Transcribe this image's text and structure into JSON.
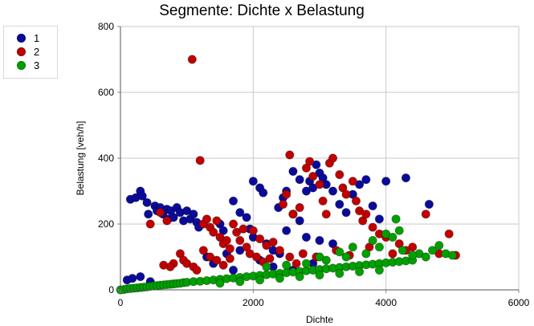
{
  "chart_data": {
    "type": "scatter",
    "title": "Segmente: Dichte x Belastung",
    "xlabel": "Dichte",
    "ylabel": "Belastung [veh/h]",
    "xlim": [
      0,
      6000
    ],
    "ylim": [
      0,
      800
    ],
    "xticks": [
      0,
      2000,
      4000,
      6000
    ],
    "yticks": [
      0,
      200,
      400,
      600,
      800
    ],
    "grid": true,
    "legend_position": "top-left",
    "series": [
      {
        "name": "1",
        "color": "#0a0a9a",
        "points": [
          [
            100,
            30
          ],
          [
            180,
            35
          ],
          [
            300,
            40
          ],
          [
            450,
            25
          ],
          [
            150,
            275
          ],
          [
            230,
            280
          ],
          [
            300,
            300
          ],
          [
            330,
            285
          ],
          [
            400,
            265
          ],
          [
            420,
            230
          ],
          [
            520,
            255
          ],
          [
            550,
            240
          ],
          [
            600,
            250
          ],
          [
            640,
            230
          ],
          [
            700,
            245
          ],
          [
            720,
            215
          ],
          [
            760,
            240
          ],
          [
            800,
            220
          ],
          [
            850,
            250
          ],
          [
            900,
            235
          ],
          [
            950,
            210
          ],
          [
            1000,
            240
          ],
          [
            1050,
            215
          ],
          [
            1100,
            230
          ],
          [
            1150,
            205
          ],
          [
            1180,
            190
          ],
          [
            1500,
            200
          ],
          [
            1550,
            180
          ],
          [
            1700,
            270
          ],
          [
            1800,
            235
          ],
          [
            1900,
            220
          ],
          [
            1950,
            185
          ],
          [
            2000,
            330
          ],
          [
            2100,
            310
          ],
          [
            2150,
            295
          ],
          [
            2000,
            160
          ],
          [
            2200,
            140
          ],
          [
            2300,
            120
          ],
          [
            2400,
            110
          ],
          [
            2380,
            250
          ],
          [
            2450,
            280
          ],
          [
            2500,
            300
          ],
          [
            2600,
            360
          ],
          [
            2700,
            335
          ],
          [
            2800,
            300
          ],
          [
            2850,
            330
          ],
          [
            2900,
            310
          ],
          [
            2950,
            380
          ],
          [
            3000,
            355
          ],
          [
            3050,
            340
          ],
          [
            2600,
            230
          ],
          [
            2700,
            210
          ],
          [
            3100,
            320
          ],
          [
            3200,
            300
          ],
          [
            3300,
            260
          ],
          [
            3400,
            235
          ],
          [
            3500,
            290
          ],
          [
            3600,
            320
          ],
          [
            3700,
            335
          ],
          [
            3800,
            255
          ],
          [
            3900,
            215
          ],
          [
            4000,
            330
          ],
          [
            4300,
            340
          ],
          [
            4650,
            260
          ],
          [
            2500,
            180
          ],
          [
            2800,
            160
          ],
          [
            3000,
            150
          ],
          [
            3200,
            140
          ],
          [
            1300,
            100
          ],
          [
            1400,
            80
          ],
          [
            1600,
            110
          ],
          [
            1700,
            60
          ],
          [
            1800,
            120
          ],
          [
            2100,
            90
          ],
          [
            2300,
            70
          ],
          [
            2600,
            60
          ],
          [
            2900,
            80
          ]
        ]
      },
      {
        "name": "2",
        "color": "#c00000",
        "points": [
          [
            1080,
            700
          ],
          [
            1200,
            393
          ],
          [
            450,
            200
          ],
          [
            600,
            235
          ],
          [
            700,
            210
          ],
          [
            900,
            110
          ],
          [
            950,
            90
          ],
          [
            1000,
            80
          ],
          [
            800,
            80
          ],
          [
            750,
            70
          ],
          [
            650,
            75
          ],
          [
            1100,
            70
          ],
          [
            1150,
            60
          ],
          [
            1250,
            200
          ],
          [
            1300,
            215
          ],
          [
            1350,
            190
          ],
          [
            1400,
            175
          ],
          [
            1450,
            210
          ],
          [
            1500,
            160
          ],
          [
            1550,
            140
          ],
          [
            1600,
            150
          ],
          [
            1650,
            125
          ],
          [
            1700,
            200
          ],
          [
            1750,
            175
          ],
          [
            1800,
            150
          ],
          [
            1850,
            185
          ],
          [
            1900,
            130
          ],
          [
            1950,
            110
          ],
          [
            2000,
            180
          ],
          [
            2100,
            155
          ],
          [
            2200,
            135
          ],
          [
            2300,
            145
          ],
          [
            2400,
            120
          ],
          [
            2450,
            260
          ],
          [
            2500,
            290
          ],
          [
            2550,
            410
          ],
          [
            2600,
            230
          ],
          [
            2700,
            250
          ],
          [
            2800,
            370
          ],
          [
            2850,
            390
          ],
          [
            2900,
            345
          ],
          [
            3000,
            320
          ],
          [
            3050,
            270
          ],
          [
            3100,
            230
          ],
          [
            3150,
            385
          ],
          [
            3200,
            400
          ],
          [
            3300,
            350
          ],
          [
            3350,
            310
          ],
          [
            3400,
            290
          ],
          [
            3500,
            330
          ],
          [
            3550,
            270
          ],
          [
            3600,
            240
          ],
          [
            3650,
            210
          ],
          [
            3700,
            230
          ],
          [
            3800,
            190
          ],
          [
            3900,
            170
          ],
          [
            4000,
            160
          ],
          [
            4200,
            140
          ],
          [
            4400,
            130
          ],
          [
            4600,
            230
          ],
          [
            4800,
            110
          ],
          [
            4950,
            170
          ],
          [
            5050,
            105
          ],
          [
            1250,
            120
          ],
          [
            1350,
            100
          ],
          [
            1450,
            90
          ],
          [
            1550,
            75
          ],
          [
            1650,
            95
          ],
          [
            2050,
            100
          ],
          [
            2150,
            85
          ],
          [
            2250,
            95
          ],
          [
            2550,
            100
          ],
          [
            2650,
            80
          ],
          [
            2750,
            110
          ],
          [
            2950,
            100
          ],
          [
            3250,
            120
          ],
          [
            3450,
            105
          ],
          [
            3750,
            130
          ],
          [
            4100,
            110
          ],
          [
            4300,
            120
          ]
        ]
      },
      {
        "name": "3",
        "color": "#00a000",
        "points": [
          [
            0,
            0
          ],
          [
            50,
            1
          ],
          [
            100,
            3
          ],
          [
            150,
            4
          ],
          [
            200,
            5
          ],
          [
            250,
            6
          ],
          [
            300,
            7
          ],
          [
            350,
            8
          ],
          [
            400,
            9
          ],
          [
            450,
            11
          ],
          [
            500,
            12
          ],
          [
            550,
            13
          ],
          [
            600,
            14
          ],
          [
            650,
            15
          ],
          [
            700,
            16
          ],
          [
            750,
            17
          ],
          [
            800,
            18
          ],
          [
            850,
            19
          ],
          [
            900,
            20
          ],
          [
            950,
            22
          ],
          [
            1000,
            23
          ],
          [
            1100,
            25
          ],
          [
            1200,
            26
          ],
          [
            1300,
            28
          ],
          [
            1400,
            30
          ],
          [
            1500,
            32
          ],
          [
            1600,
            34
          ],
          [
            1700,
            36
          ],
          [
            1800,
            38
          ],
          [
            1900,
            40
          ],
          [
            2000,
            42
          ],
          [
            2100,
            44
          ],
          [
            2200,
            46
          ],
          [
            2300,
            48
          ],
          [
            2400,
            50
          ],
          [
            2500,
            52
          ],
          [
            2600,
            54
          ],
          [
            2700,
            56
          ],
          [
            2800,
            58
          ],
          [
            2900,
            60
          ],
          [
            3000,
            62
          ],
          [
            3100,
            64
          ],
          [
            3200,
            66
          ],
          [
            3300,
            68
          ],
          [
            3400,
            70
          ],
          [
            3500,
            72
          ],
          [
            3600,
            74
          ],
          [
            3700,
            76
          ],
          [
            3800,
            78
          ],
          [
            3900,
            80
          ],
          [
            4000,
            82
          ],
          [
            4100,
            84
          ],
          [
            4200,
            86
          ],
          [
            4300,
            88
          ],
          [
            4400,
            90
          ],
          [
            1500,
            20
          ],
          [
            1800,
            25
          ],
          [
            2100,
            30
          ],
          [
            2400,
            35
          ],
          [
            2700,
            40
          ],
          [
            3000,
            45
          ],
          [
            3300,
            50
          ],
          [
            3600,
            55
          ],
          [
            3900,
            60
          ],
          [
            2200,
            70
          ],
          [
            2500,
            75
          ],
          [
            2800,
            80
          ],
          [
            3100,
            90
          ],
          [
            3400,
            100
          ],
          [
            3700,
            110
          ],
          [
            3800,
            150
          ],
          [
            3900,
            130
          ],
          [
            4000,
            170
          ],
          [
            4100,
            160
          ],
          [
            4150,
            215
          ],
          [
            4200,
            180
          ],
          [
            4250,
            120
          ],
          [
            4500,
            110
          ],
          [
            4700,
            120
          ],
          [
            4800,
            135
          ],
          [
            4900,
            110
          ],
          [
            5000,
            105
          ],
          [
            4600,
            100
          ],
          [
            4400,
            105
          ],
          [
            3500,
            130
          ],
          [
            3300,
            115
          ],
          [
            3000,
            100
          ]
        ]
      }
    ]
  }
}
